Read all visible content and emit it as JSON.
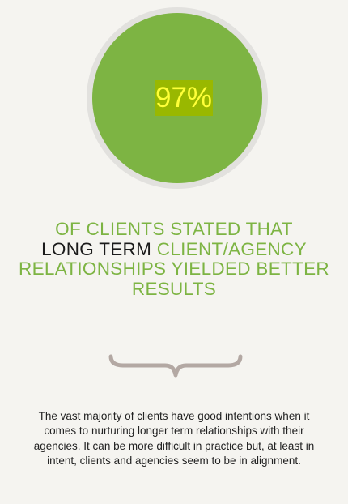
{
  "stat": {
    "value": "97%"
  },
  "headline": {
    "part1": "OF CLIENTS STATED THAT",
    "highlight": "LONG TERM",
    "part2": "CLIENT/AGENCY RELATIONSHIPS YIELDED BETTER RESULTS"
  },
  "body": {
    "text": "The vast majority of clients have good intentions when it comes to nurturing longer term relationships with their agencies. It can be more difficult in practice but, at least in intent, clients and agencies seem to be in alignment."
  },
  "colors": {
    "background": "#f5f4f0",
    "circle_fill": "#7db443",
    "circle_ring": "#e2e1de",
    "stat_text": "#ffff38",
    "stat_highlight": "#99b800",
    "headline": "#7db443",
    "headline_highlight": "#1b1b1b",
    "brace": "#b3a8a3"
  }
}
